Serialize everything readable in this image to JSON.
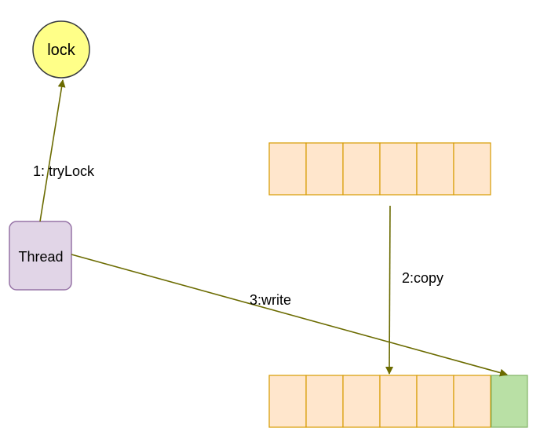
{
  "nodes": {
    "lock": {
      "label": "lock",
      "fill": "#ffff88",
      "stroke": "#36393d"
    },
    "thread": {
      "label": "Thread",
      "fill": "#e1d5e7",
      "stroke": "#9673a6"
    }
  },
  "arrays": {
    "source": {
      "cell_count": 6,
      "fill": "#ffe6cc",
      "stroke": "#d79b00"
    },
    "target": {
      "cell_count": 6,
      "fill": "#ffe6cc",
      "stroke": "#d79b00"
    },
    "new_element": {
      "fill": "#b9e0a5",
      "stroke": "#82b366"
    }
  },
  "edges": {
    "try_lock": {
      "label": "1:  tryLock",
      "color": "#6b6b00"
    },
    "copy": {
      "label": "2:copy",
      "color": "#6b6b00"
    },
    "write": {
      "label": "3:write",
      "color": "#6b6b00"
    }
  }
}
